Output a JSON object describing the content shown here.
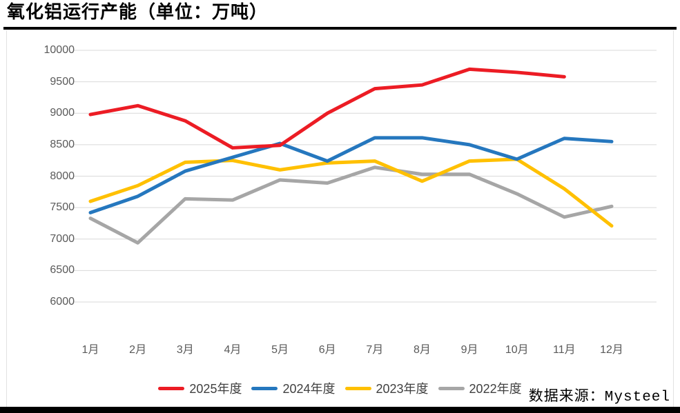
{
  "header": {
    "title": "氧化铝运行产能（单位：万吨）"
  },
  "footer": {
    "source": "数据来源：Mysteel"
  },
  "chart_data": {
    "type": "line",
    "title": "氧化铝运行产能（单位：万吨）",
    "categories": [
      "1月",
      "2月",
      "3月",
      "4月",
      "5月",
      "6月",
      "7月",
      "8月",
      "9月",
      "10月",
      "11月",
      "12月"
    ],
    "series": [
      {
        "name": "2025年度",
        "color": "#EC1C24",
        "values": [
          8980,
          9120,
          8880,
          8450,
          8490,
          9000,
          9390,
          9450,
          9700,
          9650,
          9580,
          null
        ]
      },
      {
        "name": "2024年度",
        "color": "#2577BE",
        "values": [
          7420,
          7680,
          8080,
          8300,
          8520,
          8240,
          8610,
          8610,
          8500,
          8270,
          8600,
          8550
        ]
      },
      {
        "name": "2023年度",
        "color": "#FFC000",
        "values": [
          7600,
          7850,
          8220,
          8250,
          8100,
          8210,
          8240,
          7920,
          8240,
          8270,
          7800,
          7210
        ]
      },
      {
        "name": "2022年度",
        "color": "#A6A6A6",
        "values": [
          7330,
          6940,
          7640,
          7620,
          7940,
          7890,
          8140,
          8030,
          8030,
          7720,
          7350,
          7520
        ]
      }
    ],
    "y_axis": {
      "min": 6000,
      "max": 10000,
      "step": 500,
      "tick_labels": [
        "6000",
        "6500",
        "7000",
        "7500",
        "8000",
        "8500",
        "9000",
        "9500",
        "10000"
      ]
    },
    "x_axis_label": "",
    "y_axis_label": "",
    "grid": "horizontal",
    "legend_position": "bottom",
    "source": "数据来源：Mysteel",
    "colors": {
      "grid": "#D9D9D9",
      "tick_text": "#595959",
      "rule": "#000000"
    }
  }
}
